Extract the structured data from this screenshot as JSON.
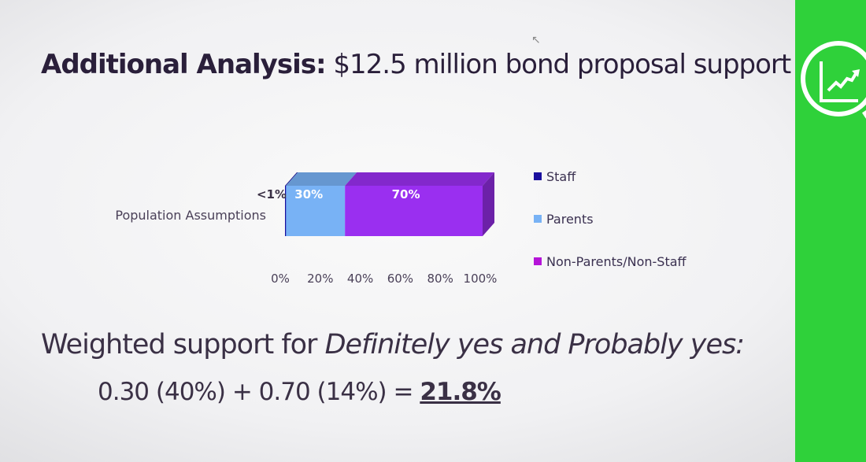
{
  "slide": {
    "title_bold": "Additional Analysis:",
    "title_rest": " $12.5 million bond proposal support",
    "weighted_prefix": "Weighted support for ",
    "weighted_italic": "Definitely yes and Probably yes:",
    "formula_text": "0.30 (40%) + 0.70 (14%) = ",
    "formula_result": "21.8%"
  },
  "chart_data": {
    "type": "bar",
    "orientation": "horizontal-stacked-100",
    "categories": [
      "Population Assumptions"
    ],
    "series": [
      {
        "name": "Staff",
        "values": [
          0.5
        ],
        "label": "<1%",
        "color": "#1a0f9e"
      },
      {
        "name": "Parents",
        "values": [
          30
        ],
        "label": "30%",
        "color": "#78b2f5"
      },
      {
        "name": "Non-Parents/Non-Staff",
        "values": [
          70
        ],
        "label": "70%",
        "color": "#9a2ff0"
      }
    ],
    "xlim": [
      0,
      100
    ],
    "xticks": [
      "0%",
      "20%",
      "40%",
      "60%",
      "80%",
      "100%"
    ],
    "legend_position": "right",
    "grid": false
  },
  "icons": {
    "badge": "magnifier-chart-icon",
    "accent": "#2fd13a"
  }
}
